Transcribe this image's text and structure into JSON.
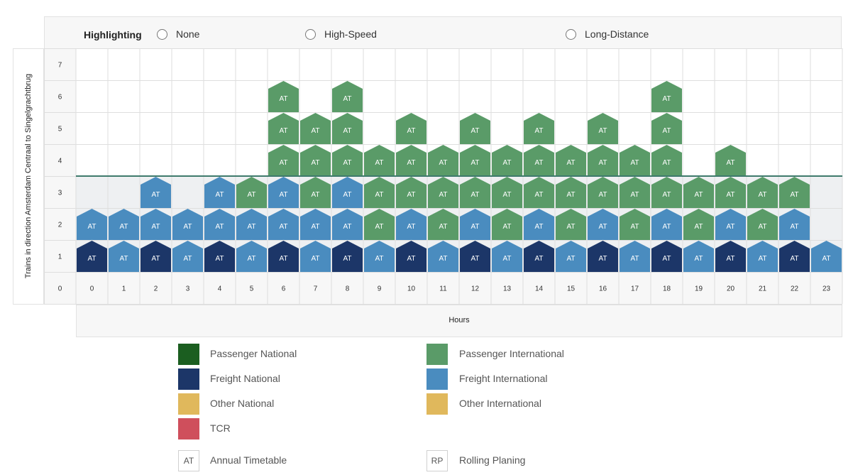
{
  "highlighting": {
    "title": "Highlighting",
    "options": [
      "None",
      "High-Speed",
      "Long-Distance"
    ]
  },
  "chart_data": {
    "type": "bar",
    "ylabel": "Trains in direction Amsterdam Centraal to Singelgrachtbrug",
    "xlabel": "Hours",
    "x": [
      0,
      1,
      2,
      3,
      4,
      5,
      6,
      7,
      8,
      9,
      10,
      11,
      12,
      13,
      14,
      15,
      16,
      17,
      18,
      19,
      20,
      21,
      22,
      23
    ],
    "y_ticks": [
      0,
      1,
      2,
      3,
      4,
      5,
      6,
      7
    ],
    "capacity_line": 3,
    "block_label": "AT",
    "stacks": [
      [
        "FN",
        "FI"
      ],
      [
        "FI",
        "FI"
      ],
      [
        "FN",
        "FI",
        "FI"
      ],
      [
        "FI",
        "FI"
      ],
      [
        "FN",
        "FI",
        "FI"
      ],
      [
        "FI",
        "FI",
        "PI"
      ],
      [
        "FN",
        "FI",
        "FI",
        "PI",
        "PI",
        "PI"
      ],
      [
        "FI",
        "FI",
        "PI",
        "PI",
        "PI"
      ],
      [
        "FN",
        "FI",
        "FI",
        "PI",
        "PI",
        "PI"
      ],
      [
        "FI",
        "PI",
        "PI",
        "PI"
      ],
      [
        "FN",
        "FI",
        "PI",
        "PI",
        "PI"
      ],
      [
        "FI",
        "PI",
        "PI",
        "PI"
      ],
      [
        "FN",
        "FI",
        "PI",
        "PI",
        "PI"
      ],
      [
        "FI",
        "PI",
        "PI",
        "PI"
      ],
      [
        "FN",
        "FI",
        "PI",
        "PI",
        "PI"
      ],
      [
        "FI",
        "PI",
        "PI",
        "PI"
      ],
      [
        "FN",
        "FI",
        "PI",
        "PI",
        "PI"
      ],
      [
        "FI",
        "PI",
        "PI",
        "PI"
      ],
      [
        "FN",
        "FI",
        "PI",
        "PI",
        "PI",
        "PI"
      ],
      [
        "FI",
        "PI",
        "PI"
      ],
      [
        "FN",
        "FI",
        "PI",
        "PI"
      ],
      [
        "FI",
        "PI",
        "PI"
      ],
      [
        "FN",
        "FI",
        "PI"
      ],
      [
        "FI"
      ]
    ],
    "colors": {
      "PN": "#1b5e20",
      "PI": "#5a9b68",
      "FN": "#1c3668",
      "FI": "#4a8cbf",
      "ON": "#e0b85c",
      "OI": "#e0b85c",
      "TCR": "#cf4f5c"
    }
  },
  "legend": {
    "categories": [
      {
        "key": "PN",
        "label": "Passenger National"
      },
      {
        "key": "PI",
        "label": "Passenger International"
      },
      {
        "key": "FN",
        "label": "Freight National"
      },
      {
        "key": "FI",
        "label": "Freight International"
      },
      {
        "key": "ON",
        "label": "Other National"
      },
      {
        "key": "OI",
        "label": "Other International"
      },
      {
        "key": "TCR",
        "label": "TCR"
      }
    ],
    "codes": [
      {
        "code": "AT",
        "label": "Annual Timetable"
      },
      {
        "code": "RP",
        "label": "Rolling Planing"
      }
    ]
  }
}
